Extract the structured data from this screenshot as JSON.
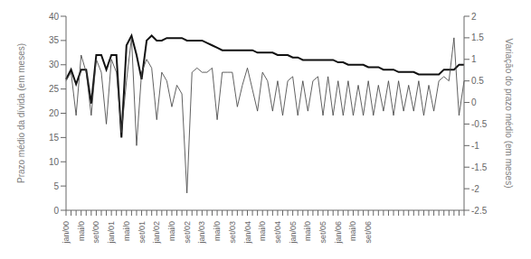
{
  "chart_data": {
    "type": "line",
    "ylabel": "Prazo médio da dívida (em meses)",
    "y2label": "Variação do prazo médio (em meses)",
    "categories": [
      "jan/00",
      null,
      null,
      "mai/0",
      null,
      null,
      "set/00",
      null,
      null,
      "jan/01",
      null,
      null,
      "mai/0",
      null,
      null,
      "set/01",
      null,
      null,
      "jan/02",
      null,
      null,
      "mai/0",
      null,
      null,
      "set/02",
      null,
      null,
      "jan/03",
      null,
      null,
      "mai/0",
      null,
      null,
      "set/03",
      null,
      null,
      "jan/04",
      null,
      null,
      "mai/0",
      null,
      null,
      "set/04",
      null,
      null,
      "jan/05",
      null,
      null,
      "mai/0",
      null,
      null,
      "set/05",
      null,
      null,
      "jan/06",
      null,
      null,
      "mai/0",
      null,
      null,
      "set/06",
      null,
      null,
      null,
      null,
      null,
      null,
      null,
      null,
      null,
      null,
      null,
      null,
      null,
      null,
      null,
      null,
      null,
      null,
      null
    ],
    "series": [
      {
        "color": "#111111",
        "values": [
          27,
          29,
          26,
          29,
          29,
          22,
          32,
          32,
          29,
          32,
          32,
          15,
          34,
          36,
          32,
          27,
          35,
          36,
          35,
          35,
          35.5,
          35.5,
          35.5,
          35.5,
          35,
          35,
          35,
          35,
          34.5,
          34,
          33.5,
          33,
          33,
          33,
          33,
          33,
          33,
          33,
          32.5,
          32.5,
          32.5,
          32.5,
          32,
          32,
          32,
          31.5,
          31.5,
          31,
          31,
          31,
          31,
          31,
          31,
          31,
          30.5,
          30.5,
          30,
          30,
          30,
          30,
          29.5,
          29.5,
          29.5,
          29,
          29,
          29,
          28.5,
          28.5,
          28.5,
          28.5,
          28,
          28,
          28,
          28,
          28,
          29,
          29,
          29,
          30,
          30
        ]
      },
      {
        "color": "#444444",
        "axis": "y2",
        "values": [
          0.5,
          0.7,
          -0.3,
          1.1,
          0.7,
          -0.3,
          1.0,
          0.7,
          -0.5,
          1.0,
          0.7,
          -0.7,
          0.5,
          1.5,
          -1.0,
          0.7,
          1.0,
          0.8,
          -0.4,
          0.7,
          0.5,
          -0.1,
          0.4,
          0.2,
          -2.1,
          0.7,
          0.8,
          0.7,
          0.7,
          0.8,
          -0.4,
          0.7,
          0.7,
          0.7,
          -0.1,
          0.4,
          0.8,
          0.3,
          -0.2,
          0.7,
          0.5,
          -0.2,
          0.5,
          -0.3,
          0.5,
          0.6,
          -0.3,
          0.5,
          -0.2,
          0.5,
          0.6,
          -0.3,
          0.6,
          -0.3,
          0.5,
          -0.3,
          0.5,
          -0.3,
          0.4,
          -0.3,
          0.5,
          -0.3,
          0.4,
          -0.2,
          0.5,
          -0.3,
          0.5,
          -0.2,
          0.4,
          -0.2,
          0.5,
          -0.3,
          0.4,
          -0.2,
          0.5,
          0.6,
          0.5,
          1.5,
          -0.3,
          0.5
        ]
      }
    ],
    "ylim": [
      0,
      40
    ],
    "yticks": [
      0,
      5,
      10,
      15,
      20,
      25,
      30,
      35,
      40
    ],
    "y2lim": [
      -2.5,
      2
    ],
    "y2ticks": [
      -2.5,
      -2,
      -1.5,
      -1,
      -0.5,
      0,
      0.5,
      1,
      1.5,
      2
    ],
    "grid": false
  }
}
